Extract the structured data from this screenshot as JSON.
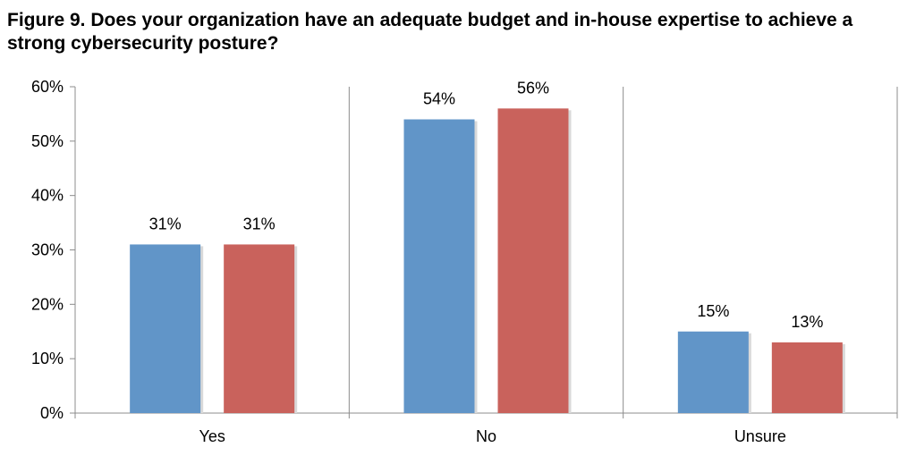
{
  "chart_data": {
    "type": "bar",
    "title": "Figure 9. Does your organization have an adequate budget and in-house expertise to achieve a strong cybersecurity posture?",
    "categories": [
      "Yes",
      "No",
      "Unsure"
    ],
    "series": [
      {
        "name": "Series 1",
        "color": "#6195C8",
        "values": [
          31,
          54,
          15
        ],
        "labels": [
          "31%",
          "54%",
          "15%"
        ]
      },
      {
        "name": "Series 2",
        "color": "#C9625C",
        "values": [
          31,
          56,
          13
        ],
        "labels": [
          "31%",
          "56%",
          "13%"
        ]
      }
    ],
    "ylim": [
      0,
      60
    ],
    "yticks": [
      0,
      10,
      20,
      30,
      40,
      50,
      60
    ],
    "ytick_labels": [
      "0%",
      "10%",
      "20%",
      "30%",
      "40%",
      "50%",
      "60%"
    ],
    "xlabel": "",
    "ylabel": "",
    "grid": false,
    "category_separators": true,
    "legend": "none"
  }
}
